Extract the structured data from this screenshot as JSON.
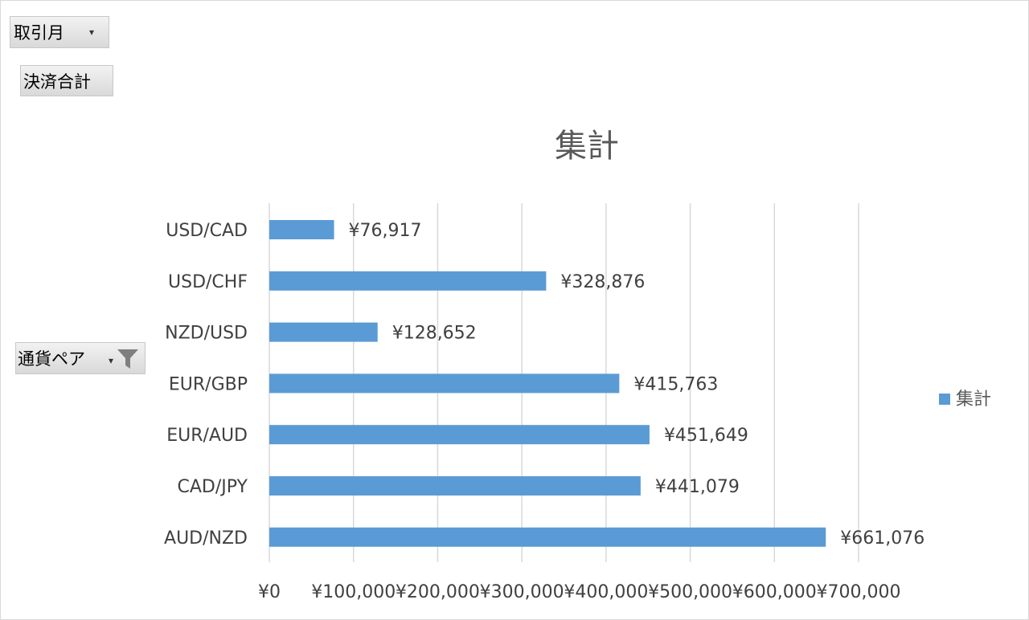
{
  "fields": {
    "month_label": "取引月",
    "sum_label": "決済合計",
    "pair_label": "通貨ペア"
  },
  "colors": {
    "bar": "#5b9bd5",
    "grid": "#d9d9d9",
    "text": "#404040"
  },
  "chart_data": {
    "type": "bar",
    "orientation": "horizontal",
    "title": "集計",
    "categories": [
      "USD/CAD",
      "USD/CHF",
      "NZD/USD",
      "EUR/GBP",
      "EUR/AUD",
      "CAD/JPY",
      "AUD/NZD"
    ],
    "series": [
      {
        "name": "集計",
        "values": [
          76917,
          328876,
          128652,
          415763,
          451649,
          441079,
          661076
        ]
      }
    ],
    "data_labels": [
      "¥76,917",
      "¥328,876",
      "¥128,652",
      "¥415,763",
      "¥451,649",
      "¥441,079",
      "¥661,076"
    ],
    "xlim": [
      0,
      700000
    ],
    "x_ticks": [
      0,
      100000,
      200000,
      300000,
      400000,
      500000,
      600000,
      700000
    ],
    "x_tick_labels": [
      "¥0",
      "¥100,000",
      "¥200,000",
      "¥300,000",
      "¥400,000",
      "¥500,000",
      "¥600,000",
      "¥700,000"
    ],
    "grid": true,
    "legend": "right"
  }
}
